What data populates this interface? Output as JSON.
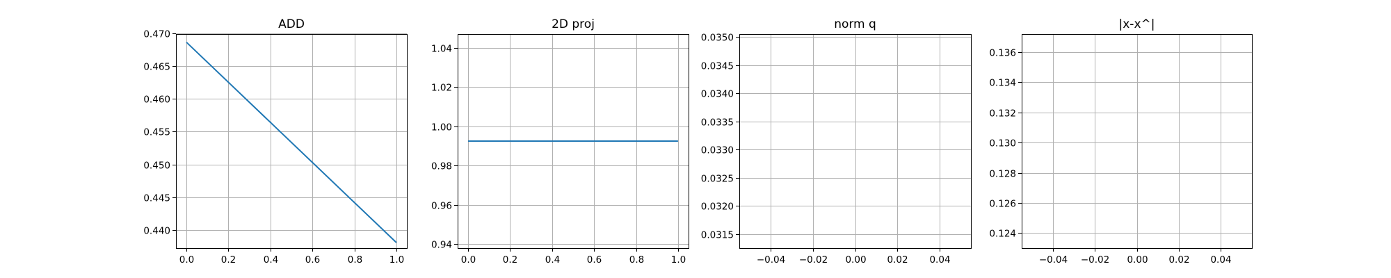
{
  "figure": {
    "line_color": "#1f77b4",
    "grid": true,
    "background": "#ffffff"
  },
  "chart_data": [
    {
      "type": "line",
      "title": "ADD",
      "xlabel": "",
      "ylabel": "",
      "xlim": [
        -0.05,
        1.05
      ],
      "ylim": [
        0.43725,
        0.46985
      ],
      "xticks": [
        0.0,
        0.2,
        0.4,
        0.6,
        0.8,
        1.0
      ],
      "xtick_labels": [
        "0.0",
        "0.2",
        "0.4",
        "0.6",
        "0.8",
        "1.0"
      ],
      "yticks": [
        0.44,
        0.445,
        0.45,
        0.455,
        0.46,
        0.465,
        0.47
      ],
      "ytick_labels": [
        "0.440",
        "0.445",
        "0.450",
        "0.455",
        "0.460",
        "0.465",
        "0.470"
      ],
      "series": [
        {
          "x": [
            0.0,
            1.0
          ],
          "y": [
            0.4686,
            0.4381
          ]
        }
      ]
    },
    {
      "type": "line",
      "title": "2D proj",
      "xlabel": "",
      "ylabel": "",
      "xlim": [
        -0.05,
        1.05
      ],
      "ylim": [
        0.938,
        1.047
      ],
      "xticks": [
        0.0,
        0.2,
        0.4,
        0.6,
        0.8,
        1.0
      ],
      "xtick_labels": [
        "0.0",
        "0.2",
        "0.4",
        "0.6",
        "0.8",
        "1.0"
      ],
      "yticks": [
        0.94,
        0.96,
        0.98,
        1.0,
        1.02,
        1.04
      ],
      "ytick_labels": [
        "0.94",
        "0.96",
        "0.98",
        "1.00",
        "1.02",
        "1.04"
      ],
      "series": [
        {
          "x": [
            0.0,
            1.0
          ],
          "y": [
            0.9925,
            0.9925
          ]
        }
      ]
    },
    {
      "type": "line",
      "title": "norm q",
      "xlabel": "",
      "ylabel": "",
      "xlim": [
        -0.055,
        0.055
      ],
      "ylim": [
        0.03125,
        0.03505
      ],
      "xticks": [
        -0.04,
        -0.02,
        0.0,
        0.02,
        0.04
      ],
      "xtick_labels": [
        "−0.04",
        "−0.02",
        "0.00",
        "0.02",
        "0.04"
      ],
      "yticks": [
        0.0315,
        0.032,
        0.0325,
        0.033,
        0.0335,
        0.034,
        0.0345,
        0.035
      ],
      "ytick_labels": [
        "0.0315",
        "0.0320",
        "0.0325",
        "0.0330",
        "0.0335",
        "0.0340",
        "0.0345",
        "0.0350"
      ],
      "series": []
    },
    {
      "type": "line",
      "title": "|x-x^|",
      "xlabel": "",
      "ylabel": "",
      "xlim": [
        -0.055,
        0.055
      ],
      "ylim": [
        0.123,
        0.1372
      ],
      "xticks": [
        -0.04,
        -0.02,
        0.0,
        0.02,
        0.04
      ],
      "xtick_labels": [
        "−0.04",
        "−0.02",
        "0.00",
        "0.02",
        "0.04"
      ],
      "yticks": [
        0.124,
        0.126,
        0.128,
        0.13,
        0.132,
        0.134,
        0.136
      ],
      "ytick_labels": [
        "0.124",
        "0.126",
        "0.128",
        "0.130",
        "0.132",
        "0.134",
        "0.136"
      ],
      "series": []
    }
  ]
}
